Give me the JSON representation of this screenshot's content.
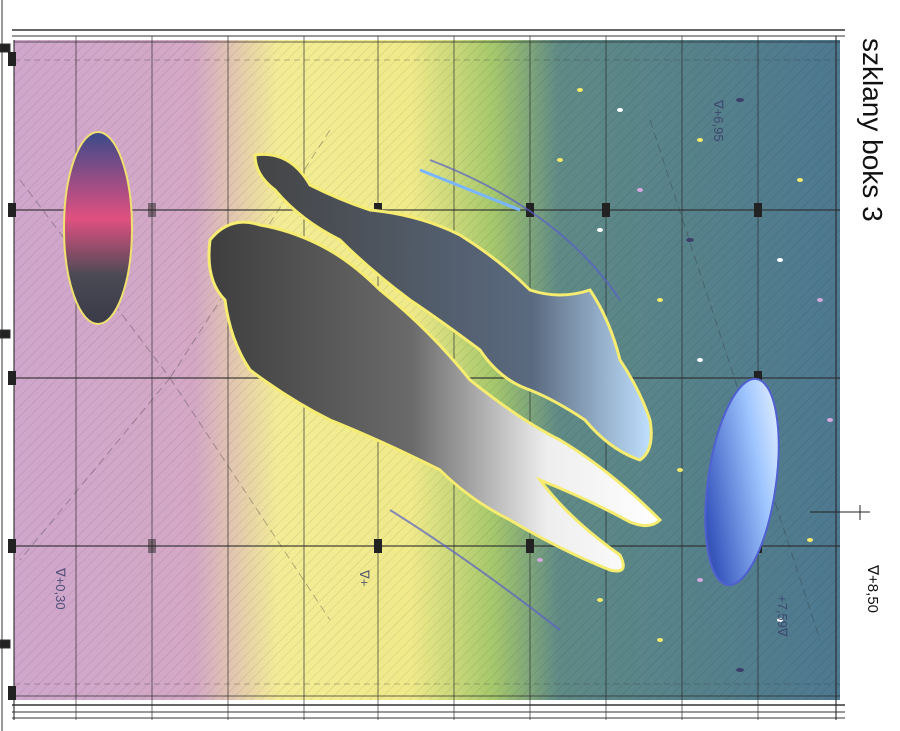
{
  "drawing": {
    "title": "szklany boks 3",
    "elevation_right": "+8,50",
    "inner_elevations": [
      "+0,30",
      "+6,95",
      "+7,59"
    ],
    "triangle_symbol": "∇",
    "partial_label": "+"
  },
  "palette": {
    "violet": "#c9a0c8",
    "yellow": "#f2ea8c",
    "green": "#9cc46a",
    "steel_blue": "#4f7890",
    "frame": "#222222",
    "figure_dark": "#4a4a4a",
    "figure_light": "#f0f0f0",
    "accent_red": "#e2446a",
    "accent_blue": "#2a4aa0"
  }
}
